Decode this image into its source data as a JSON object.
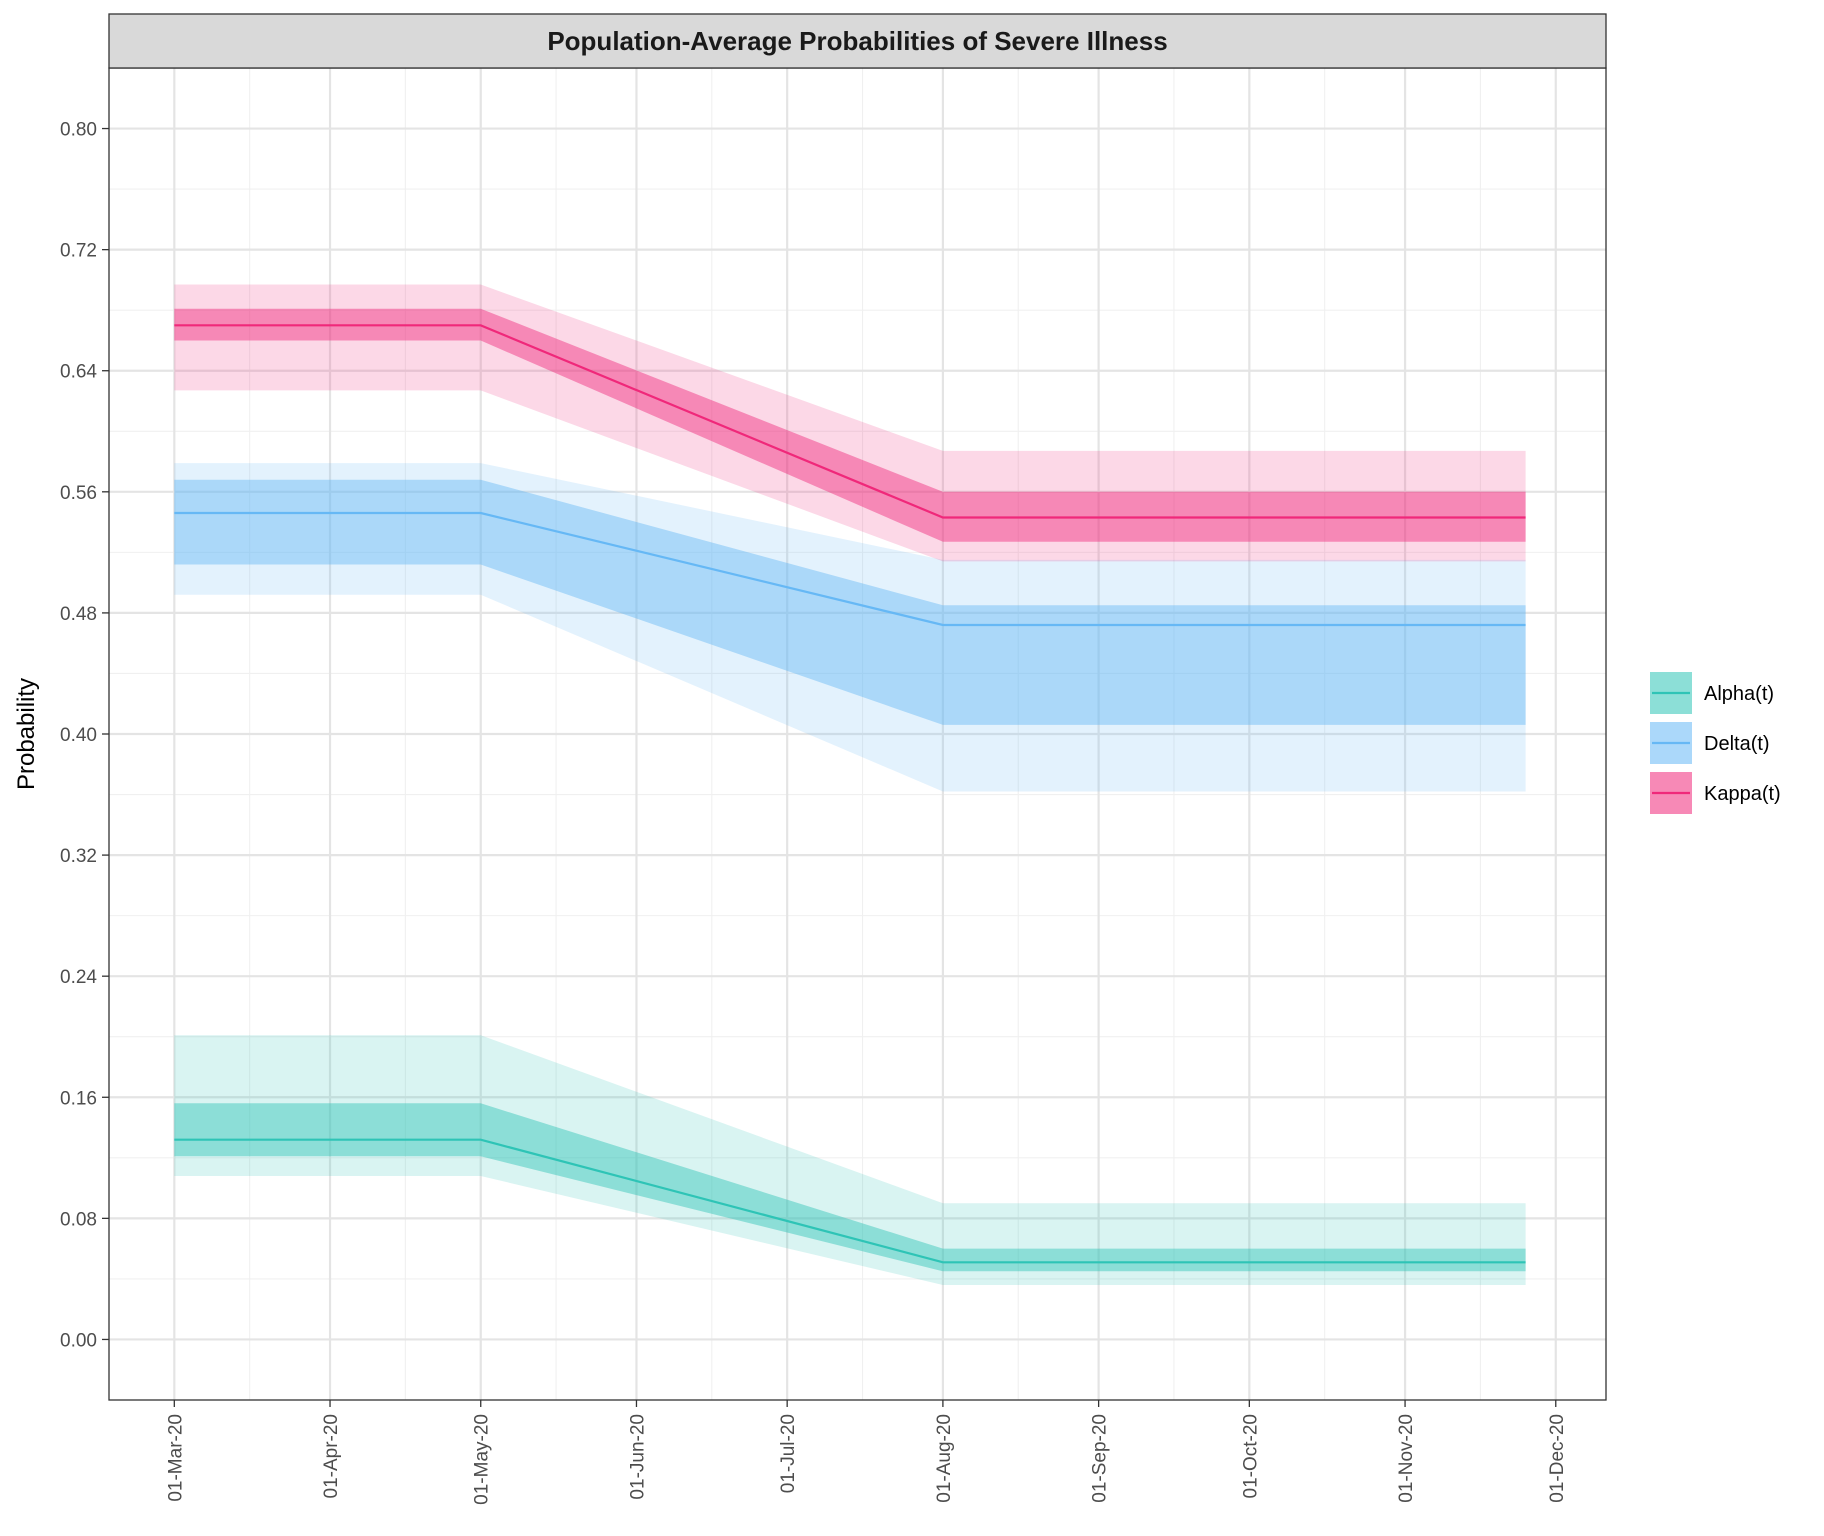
{
  "chart_data": {
    "type": "area",
    "title": "Population-Average Probabilities of Severe Illness",
    "xlabel": "",
    "ylabel": "Probability",
    "x_tick_labels": [
      "01-Mar-20",
      "01-Apr-20",
      "01-May-20",
      "01-Jun-20",
      "01-Jul-20",
      "01-Aug-20",
      "01-Sep-20",
      "01-Oct-20",
      "01-Nov-20",
      "01-Dec-20"
    ],
    "y_tick_labels": [
      "0.00",
      "0.08",
      "0.16",
      "0.24",
      "0.32",
      "0.40",
      "0.48",
      "0.56",
      "0.64",
      "0.72",
      "0.80"
    ],
    "xlim": [
      "2020-02-17",
      "2020-12-11"
    ],
    "ylim": [
      -0.04,
      0.84
    ],
    "grid": true,
    "legend_position": "right",
    "x": [
      "2020-03-01",
      "2020-05-01",
      "2020-08-01",
      "2020-11-25"
    ],
    "series": [
      {
        "name": "Alpha(t)",
        "color": "#2EC4B6",
        "values": [
          0.132,
          0.132,
          0.051,
          0.051
        ],
        "inner_lower": [
          0.121,
          0.121,
          0.045,
          0.045
        ],
        "inner_upper": [
          0.156,
          0.156,
          0.06,
          0.06
        ],
        "outer_lower": [
          0.108,
          0.108,
          0.036,
          0.036
        ],
        "outer_upper": [
          0.201,
          0.201,
          0.09,
          0.09
        ]
      },
      {
        "name": "Delta(t)",
        "color": "#66B8F5",
        "values": [
          0.546,
          0.546,
          0.472,
          0.472
        ],
        "inner_lower": [
          0.512,
          0.512,
          0.406,
          0.406
        ],
        "inner_upper": [
          0.568,
          0.568,
          0.485,
          0.485
        ],
        "outer_lower": [
          0.492,
          0.492,
          0.362,
          0.362
        ],
        "outer_upper": [
          0.579,
          0.579,
          0.515,
          0.515
        ]
      },
      {
        "name": "Kappa(t)",
        "color": "#F0287A",
        "values": [
          0.67,
          0.67,
          0.543,
          0.543
        ],
        "inner_lower": [
          0.66,
          0.66,
          0.527,
          0.527
        ],
        "inner_upper": [
          0.681,
          0.681,
          0.56,
          0.56
        ],
        "outer_lower": [
          0.627,
          0.627,
          0.514,
          0.514
        ],
        "outer_upper": [
          0.697,
          0.697,
          0.587,
          0.587
        ]
      }
    ]
  }
}
